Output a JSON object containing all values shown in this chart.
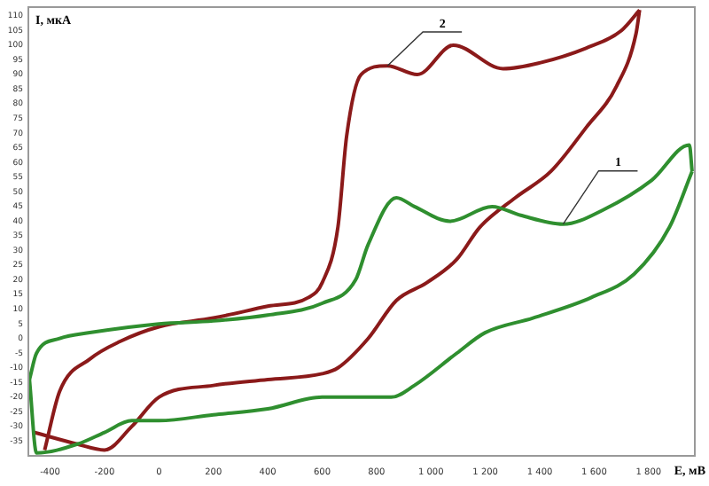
{
  "chart_data": {
    "type": "line",
    "xlabel": "E, мВ",
    "ylabel": "I, мкА",
    "xlim": [
      -480,
      1970
    ],
    "ylim": [
      -40,
      113
    ],
    "xticks": [
      -400,
      -200,
      0,
      200,
      400,
      600,
      800,
      {
        "value": 1000,
        "label": "1 000"
      },
      {
        "value": 1200,
        "label": "1 200"
      },
      {
        "value": 1400,
        "label": "1 400"
      },
      {
        "value": 1600,
        "label": "1 600"
      },
      {
        "value": 1800,
        "label": "1 800"
      }
    ],
    "yticks": [
      -35,
      -30,
      -25,
      -20,
      -15,
      -10,
      -5,
      0,
      5,
      10,
      15,
      20,
      25,
      30,
      35,
      40,
      45,
      50,
      55,
      60,
      65,
      70,
      75,
      80,
      85,
      90,
      95,
      100,
      105,
      110
    ],
    "grid": false,
    "legend": false,
    "line_style": "solid",
    "series": [
      {
        "color": "#2f8f2f",
        "x": [
          -476,
          -450,
          -365,
          -254,
          0,
          200,
          400,
          600,
          723,
          769,
          873,
          939,
          1069,
          1225,
          1330,
          1486,
          1636,
          1812,
          1950,
          1960
        ],
        "values": [
          -14,
          -5,
          0,
          2,
          5,
          6,
          8,
          12,
          20,
          32,
          48,
          45,
          40,
          45,
          42,
          39,
          44,
          54,
          66,
          57
        ]
      },
      {
        "color": "#2f8f2f",
        "x": [
          1960,
          1877,
          1747,
          1590,
          1375,
          1199,
          1095,
          939,
          854,
          723,
          600,
          400,
          200,
          0,
          -100,
          -200,
          -300,
          -450,
          -476
        ],
        "values": [
          57,
          38,
          22,
          14,
          7,
          2,
          -5,
          -16,
          -20,
          -20,
          -20,
          -24,
          -26,
          -28,
          -28,
          -32,
          -36,
          -39,
          -14
        ]
      },
      {
        "color": "#8b1a1a",
        "x": [
          -420,
          -365,
          -254,
          -143,
          0,
          200,
          400,
          550,
          600,
          658,
          690,
          743,
          840,
          950,
          1082,
          1265,
          1400,
          1570,
          1700,
          1767
        ],
        "values": [
          -38,
          -18,
          -7,
          -1,
          4,
          7,
          11,
          14,
          19,
          38,
          69,
          90,
          93,
          90,
          100,
          92,
          94,
          99,
          105,
          112
        ]
      },
      {
        "color": "#8b1a1a",
        "x": [
          1767,
          1754,
          1682,
          1571,
          1441,
          1310,
          1180,
          1095,
          984,
          873,
          769,
          658,
          600,
          400,
          200,
          0,
          -100,
          -200,
          -300,
          -460
        ],
        "values": [
          112,
          104,
          86,
          72,
          57,
          48,
          38,
          27,
          19,
          13,
          0,
          -10,
          -12,
          -14,
          -16,
          -20,
          -30,
          -38,
          -36,
          -32
        ]
      }
    ],
    "annotations": [
      {
        "text": "1",
        "x": 1486,
        "y": 39
      },
      {
        "text": "2",
        "x": 840,
        "y": 93
      }
    ]
  }
}
